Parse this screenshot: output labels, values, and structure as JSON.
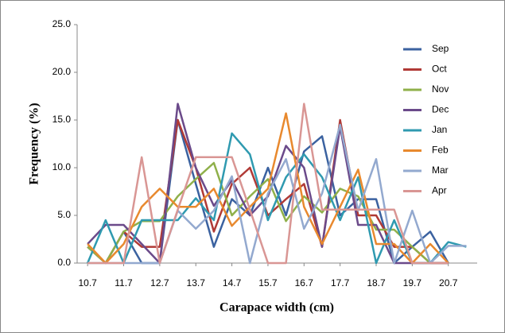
{
  "chart_data": {
    "type": "line",
    "x_label": "Carapace width (cm)",
    "y_label": "Frequency (%)",
    "x": [
      10.7,
      11.2,
      11.7,
      12.2,
      12.7,
      13.2,
      13.7,
      14.2,
      14.7,
      15.2,
      15.7,
      16.2,
      16.7,
      17.2,
      17.7,
      18.2,
      18.7,
      19.2,
      19.7,
      20.2,
      20.7,
      21.2
    ],
    "xlim": [
      10.41,
      21.5
    ],
    "xticks": [
      10.7,
      11.7,
      12.7,
      13.7,
      14.7,
      15.7,
      16.7,
      17.7,
      18.7,
      19.7,
      20.7
    ],
    "ylim": [
      0,
      25
    ],
    "yticks": [
      {
        "value": 0,
        "label": "0.0"
      },
      {
        "value": 5,
        "label": "5.0"
      },
      {
        "value": 10,
        "label": "10.0"
      },
      {
        "value": 15,
        "label": "15.0"
      },
      {
        "value": 20,
        "label": "20.0"
      },
      {
        "value": 25,
        "label": "25.0"
      }
    ],
    "legend": "right",
    "series": [
      {
        "name": "Sep",
        "color": "#3b62a0",
        "values": [
          1.7,
          0,
          3.3,
          0,
          0,
          15,
          8.3,
          1.7,
          6.7,
          5,
          10,
          5,
          11.7,
          13.3,
          5,
          6.7,
          6.7,
          0,
          1.7,
          3.3,
          0,
          null
        ]
      },
      {
        "name": "Oct",
        "color": "#b03a36",
        "values": [
          1.7,
          0,
          3.3,
          1.7,
          1.7,
          15,
          10,
          3.3,
          8.3,
          10,
          5,
          6.7,
          8.3,
          1.7,
          15,
          5,
          5,
          1.7,
          1.7,
          0,
          0,
          null
        ]
      },
      {
        "name": "Nov",
        "color": "#8fb04a",
        "values": [
          1.7,
          0,
          3.3,
          4.4,
          4.4,
          7,
          8.8,
          10.5,
          5,
          7,
          8.8,
          4.4,
          7,
          5.3,
          7.8,
          7,
          3.5,
          3.5,
          1.7,
          0,
          0,
          null
        ]
      },
      {
        "name": "Dec",
        "color": "#6b4a8a",
        "values": [
          2,
          4,
          4,
          2,
          0,
          16.7,
          10,
          6,
          8.7,
          5,
          7,
          12.3,
          10,
          1.7,
          14.3,
          4,
          4,
          0,
          0,
          0,
          0,
          null
        ]
      },
      {
        "name": "Jan",
        "color": "#2f9ab0",
        "values": [
          0,
          4.5,
          0,
          4.5,
          4.5,
          4.5,
          6.8,
          4.5,
          13.6,
          11.4,
          4.5,
          9,
          11.4,
          9,
          4.5,
          9,
          0,
          4.5,
          0,
          0,
          2.2,
          1.7
        ]
      },
      {
        "name": "Feb",
        "color": "#e8892e",
        "values": [
          2,
          0,
          2,
          5.9,
          7.8,
          5.9,
          5.9,
          7.8,
          3.9,
          5.9,
          7.8,
          15.7,
          5.9,
          2,
          5.9,
          9.8,
          2,
          2,
          0,
          2,
          0,
          null
        ]
      },
      {
        "name": "Mar",
        "color": "#93a9cf",
        "values": [
          0,
          0,
          0,
          0,
          0,
          5.5,
          3.6,
          5.5,
          9.1,
          0,
          7.3,
          10.9,
          3.6,
          7.3,
          14.5,
          5.5,
          10.9,
          0,
          5.5,
          0,
          1.8,
          1.8
        ]
      },
      {
        "name": "Apr",
        "color": "#d99694",
        "values": [
          0,
          0,
          0,
          11.1,
          0,
          5.6,
          11.1,
          11.1,
          11.1,
          5.6,
          0,
          0,
          16.7,
          5.6,
          5.6,
          5.6,
          5.6,
          5.6,
          0,
          0,
          0,
          null
        ]
      }
    ]
  }
}
